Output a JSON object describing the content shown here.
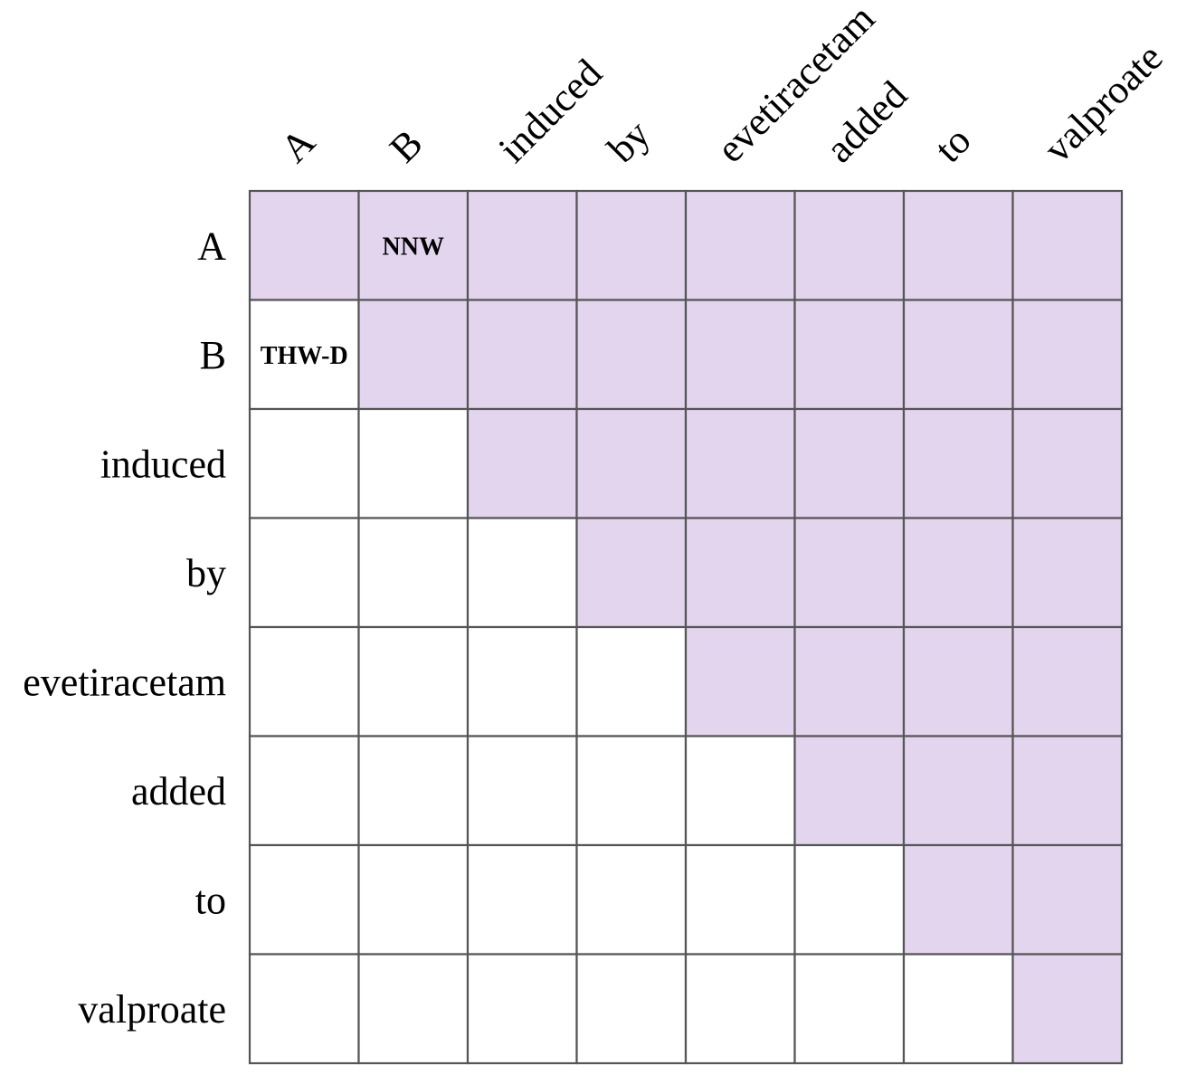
{
  "words": [
    "A",
    "B",
    "induced",
    "by",
    "evetiracetam",
    "added",
    "to",
    "valproate"
  ],
  "colors": {
    "upper_triangle_fill": "#e3d5ee",
    "lower_fill": "#ffffff",
    "grid_line": "#555555"
  },
  "cell_tags": [
    {
      "row": 0,
      "col": 1,
      "text": "NNW"
    },
    {
      "row": 1,
      "col": 0,
      "text": "THW-D"
    }
  ]
}
